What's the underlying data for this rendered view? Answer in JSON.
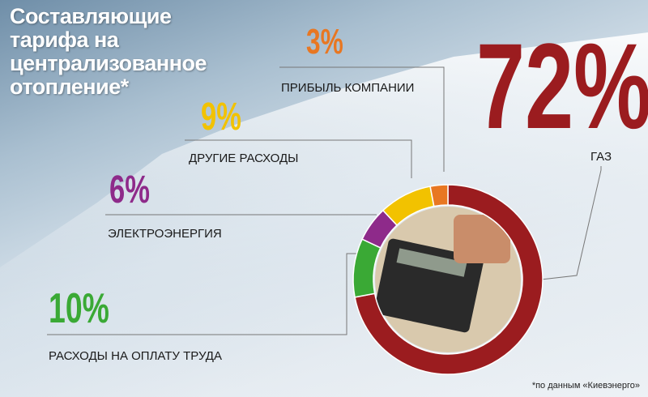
{
  "chart_data": {
    "type": "pie",
    "title": "Составляющие тарифа на централизованное отопление*",
    "note": "*по данным «Киевэнерго»",
    "categories": [
      "ГАЗ",
      "РАСХОДЫ НА ОПЛАТУ ТРУДА",
      "ЭЛЕКТРОЭНЕРГИЯ",
      "ДРУГИЕ РАСХОДЫ",
      "ПРИБЫЛЬ КОМПАНИИ"
    ],
    "values": [
      72,
      10,
      6,
      9,
      3
    ],
    "value_labels": [
      "72%",
      "10%",
      "6%",
      "9%",
      "3%"
    ],
    "colors": [
      "#9b1c1f",
      "#3aa935",
      "#8e2a8a",
      "#f2c200",
      "#e87722"
    ]
  }
}
